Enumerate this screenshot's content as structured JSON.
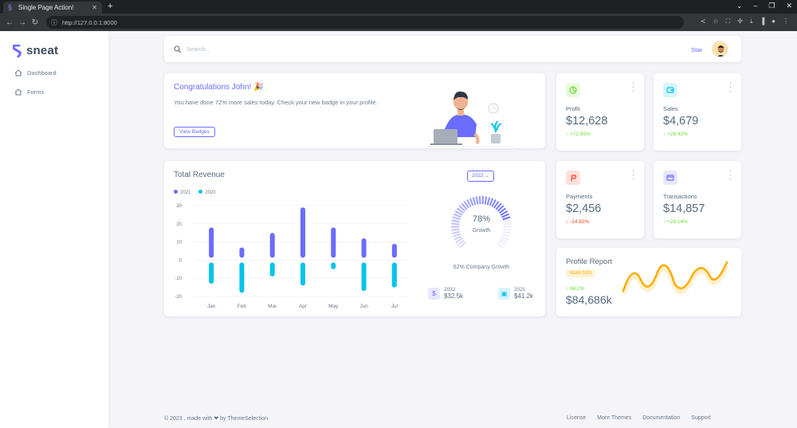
{
  "browser": {
    "tab_title": "Single Page Action!",
    "url": "http://127.0.0.1:8000"
  },
  "sidebar": {
    "brand": "sneat",
    "items": [
      {
        "label": "Dashboard",
        "icon": "home-icon"
      },
      {
        "label": "Forms",
        "icon": "home-icon"
      }
    ]
  },
  "navbar": {
    "search_placeholder": "Search...",
    "star_label": "Star"
  },
  "welcome": {
    "title": "Congratulations John! 🎉",
    "message": "You have done 72% more sales today. Check your new badge in your profile.",
    "button": "View Badges"
  },
  "stats": [
    {
      "label": "Profit",
      "value": "$12,628",
      "delta": "+72.80%",
      "trend": "up",
      "icon": "chart-icon",
      "icon_color": "#71dd37",
      "icon_bg": "#e8fadf"
    },
    {
      "label": "Sales",
      "value": "$4,679",
      "delta": "+28.42%",
      "trend": "up",
      "icon": "wallet-icon",
      "icon_color": "#03c3ec",
      "icon_bg": "#d7f5fc"
    },
    {
      "label": "Payments",
      "value": "$2,456",
      "delta": "-14.82%",
      "trend": "down",
      "icon": "paypal-icon",
      "icon_color": "#ff3e1d",
      "icon_bg": "#ffe0db"
    },
    {
      "label": "Transactions",
      "value": "$14,857",
      "delta": "+28.14%",
      "trend": "up",
      "icon": "credit-card-icon",
      "icon_color": "#696cff",
      "icon_bg": "#e7e7ff"
    }
  ],
  "revenue": {
    "title": "Total Revenue",
    "year_button": "2022",
    "gauge_percent": "78%",
    "gauge_label": "Growth",
    "company_growth": "62% Company Growth",
    "mini": [
      {
        "year": "2022",
        "value": "$32.5k",
        "icon": "dollar-icon"
      },
      {
        "year": "2021",
        "value": "$41.2k",
        "icon": "wallet-icon"
      }
    ]
  },
  "chart_data": {
    "type": "bar",
    "title": "Total Revenue",
    "categories": [
      "Jan",
      "Feb",
      "Mar",
      "Apr",
      "May",
      "Jun",
      "Jul"
    ],
    "series": [
      {
        "name": "2021",
        "values": [
          18,
          7,
          15,
          29,
          18,
          12,
          9
        ],
        "color": "#696cff"
      },
      {
        "name": "2020",
        "values": [
          -13,
          -18,
          -9,
          -14,
          -5,
          -17,
          -15
        ],
        "color": "#03c3ec"
      }
    ],
    "yticks": [
      30,
      20,
      10,
      0,
      -10,
      -20
    ],
    "ylim": [
      -20,
      30
    ],
    "legend": "top-left",
    "grid": true
  },
  "profile_report": {
    "title": "Profile Report",
    "badge": "YEAR 2021",
    "delta": "68.2%",
    "value": "$84,686k"
  },
  "footer": {
    "left": "© 2023 , made with ❤ by ThemeSelection",
    "links": [
      "License",
      "More Themes",
      "Documentation",
      "Support"
    ]
  },
  "colors": {
    "primary": "#696cff",
    "info": "#03c3ec",
    "warning": "#ffab00",
    "success": "#71dd37",
    "danger": "#ff3e1d"
  }
}
